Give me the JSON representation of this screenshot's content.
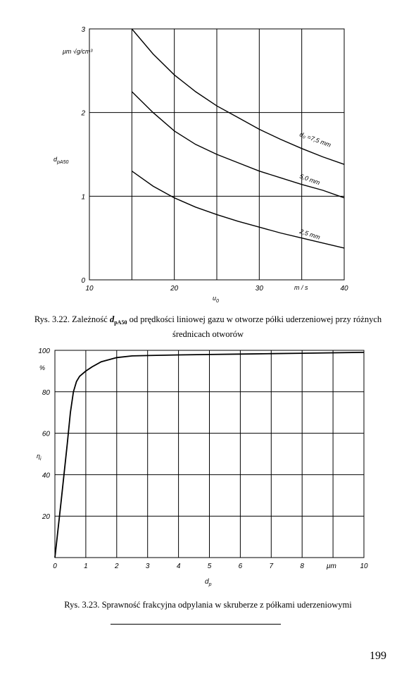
{
  "chart_data": [
    {
      "type": "line",
      "xlabel": "u",
      "xlabel_sub": "0",
      "x_unit": "m / s",
      "ylabel": "d",
      "ylabel_sub": "pA50",
      "y_unit": "μm √g/cm³",
      "xlim": [
        10,
        40
      ],
      "ylim": [
        0,
        3
      ],
      "x_ticks": [
        "10",
        "20",
        "30",
        "40"
      ],
      "y_ticks": [
        "0",
        "1",
        "2",
        "3"
      ],
      "grid": true,
      "series": [
        {
          "name": "d₀ =7,5 mm",
          "x": [
            15,
            17.5,
            20,
            22.5,
            25,
            27.5,
            30,
            32.5,
            35,
            37.5,
            40
          ],
          "y": [
            3.0,
            2.7,
            2.45,
            2.25,
            2.08,
            1.94,
            1.8,
            1.68,
            1.57,
            1.47,
            1.38
          ]
        },
        {
          "name": "5,0 mm",
          "x": [
            15,
            17.5,
            20,
            22.5,
            25,
            27.5,
            30,
            32.5,
            35,
            37.5,
            40
          ],
          "y": [
            2.25,
            2.0,
            1.78,
            1.62,
            1.5,
            1.4,
            1.3,
            1.22,
            1.14,
            1.07,
            0.98
          ]
        },
        {
          "name": "2,5 mm",
          "x": [
            15,
            17.5,
            20,
            22.5,
            25,
            27.5,
            30,
            32.5,
            35,
            37.5,
            40
          ],
          "y": [
            1.3,
            1.12,
            0.98,
            0.87,
            0.78,
            0.7,
            0.63,
            0.56,
            0.5,
            0.44,
            0.38
          ]
        }
      ]
    },
    {
      "type": "line",
      "xlabel": "d",
      "xlabel_sub": "p",
      "x_unit": "μm",
      "ylabel": "η",
      "ylabel_sub": "i",
      "y_unit": "%",
      "xlim": [
        0,
        10
      ],
      "ylim": [
        0,
        100
      ],
      "x_ticks": [
        "0",
        "1",
        "2",
        "3",
        "4",
        "5",
        "6",
        "7",
        "8",
        "10"
      ],
      "y_ticks": [
        "20",
        "40",
        "60",
        "80",
        "100"
      ],
      "grid": true,
      "series": [
        {
          "name": "",
          "x": [
            0,
            0.2,
            0.4,
            0.5,
            0.6,
            0.7,
            0.8,
            1.0,
            1.2,
            1.5,
            2.0,
            2.5,
            3,
            4,
            5,
            6,
            7,
            8,
            9,
            10
          ],
          "y": [
            0,
            27,
            55,
            70,
            80,
            85,
            87.5,
            90,
            92,
            94.5,
            96.5,
            97.3,
            97.5,
            97.8,
            98,
            98.2,
            98.4,
            98.6,
            98.8,
            99
          ]
        }
      ]
    }
  ],
  "captions": {
    "fig1_prefix": "Rys. 3.22. Zależność ",
    "fig1_symbol": "d",
    "fig1_symbol_sub": "pA50",
    "fig1_rest": " od prędkości liniowej gazu w otworze półki uderzeniowej przy różnych",
    "fig1_line2": "średnicach otworów",
    "fig2": "Rys. 3.23. Sprawność frakcyjna odpylania w skruberze z półkami uderzeniowymi"
  },
  "page_number": "199"
}
